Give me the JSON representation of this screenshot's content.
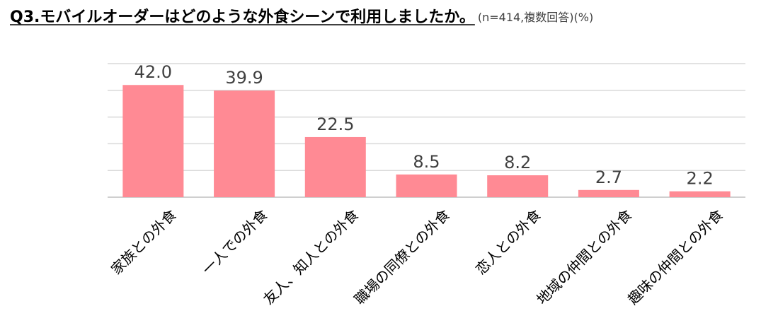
{
  "chart_data": {
    "type": "bar",
    "title": "Q3.モバイルオーダーはどのような外食シーンで利用しましたか。",
    "subtitle": "(n=414,複数回答)(%)",
    "categories": [
      "家族との外食",
      "一人での外食",
      "友人、知人との外食",
      "職場の同僚との外食",
      "恋人との外食",
      "地域の仲間との外食",
      "趣味の仲間との外食"
    ],
    "values": [
      42.0,
      39.9,
      22.5,
      8.5,
      8.2,
      2.7,
      2.2
    ],
    "value_labels": [
      "42.0",
      "39.9",
      "22.5",
      "8.5",
      "8.2",
      "2.7",
      "2.2"
    ],
    "ylim": [
      0,
      50
    ],
    "grid": true,
    "legend": "none",
    "colors": {
      "bar": "#ff8a94",
      "grid": "#d9d9d9",
      "axis": "#bfbfbf",
      "text": "#404040",
      "title": "#000000"
    }
  }
}
